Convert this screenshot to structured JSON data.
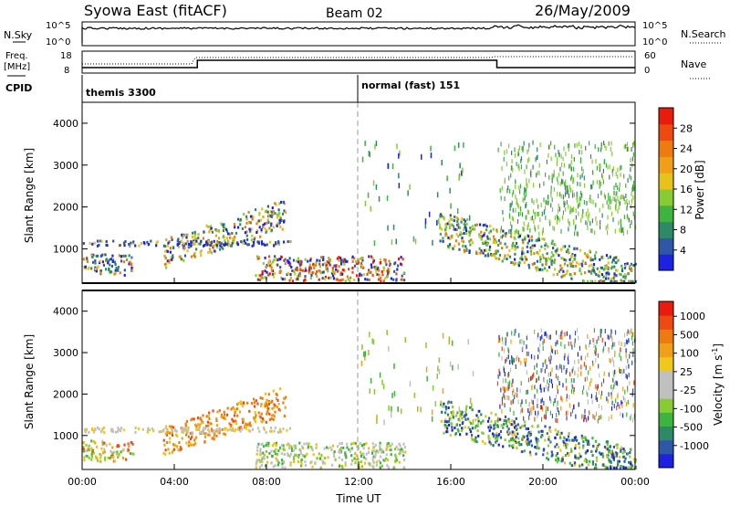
{
  "header": {
    "title": "Syowa East (fitACF)",
    "beam": "Beam 02",
    "date": "26/May/2009"
  },
  "nsky_panel": {
    "label": "N.Sky",
    "right_label": "N.Search",
    "ticks": [
      "10^5",
      "10^0"
    ]
  },
  "freq_panel": {
    "label_line1": "Freq.",
    "label_line2": "[MHz]",
    "right_label": "Nave",
    "left_ticks": [
      "18",
      "8"
    ],
    "right_ticks": [
      "60",
      "0"
    ]
  },
  "cpid_panel": {
    "label": "CPID",
    "modes": [
      "themis 3300",
      "normal (fast) 151"
    ]
  },
  "time_axis": {
    "label": "Time UT",
    "ticks": [
      "00:00",
      "04:00",
      "08:00",
      "12:00",
      "16:00",
      "20:00",
      "00:00"
    ]
  },
  "range_axis": {
    "label": "Slant Range [km]",
    "ticks": [
      "1000",
      "2000",
      "3000",
      "4000"
    ]
  },
  "power_colorbar": {
    "label": "Power [dB]",
    "ticks": [
      "4",
      "8",
      "12",
      "16",
      "20",
      "24",
      "28"
    ],
    "colors": [
      "#1d21e0",
      "#2e57a8",
      "#2e8a66",
      "#3fb33f",
      "#88cc33",
      "#e6c21a",
      "#f0a018",
      "#ee7a12",
      "#ec4a10",
      "#e81b0c"
    ]
  },
  "velocity_colorbar": {
    "label": "Velocity [m s^-1]",
    "ticks": [
      "1000",
      "500",
      "100",
      "25",
      "-25",
      "-100",
      "-500",
      "-1000"
    ],
    "colors": [
      "#1d21e0",
      "#2e57a8",
      "#2e8a66",
      "#3fb33f",
      "#88cc33",
      "#c0c0c0",
      "#c0c0c0",
      "#f0c81a",
      "#f0a018",
      "#ee7a12",
      "#ec4a10",
      "#e81b0c"
    ]
  },
  "chart_data": {
    "type": "heatmap",
    "x_range_hours": [
      0,
      24
    ],
    "y_range_km": [
      180,
      4500
    ],
    "grid": false,
    "cpid_switch_hour": 12,
    "freq_steps_hours": [
      {
        "start": 0,
        "end": 5,
        "level": "low"
      },
      {
        "start": 5,
        "end": 18,
        "level": "high"
      },
      {
        "start": 18,
        "end": 24,
        "level": "low"
      }
    ]
  }
}
